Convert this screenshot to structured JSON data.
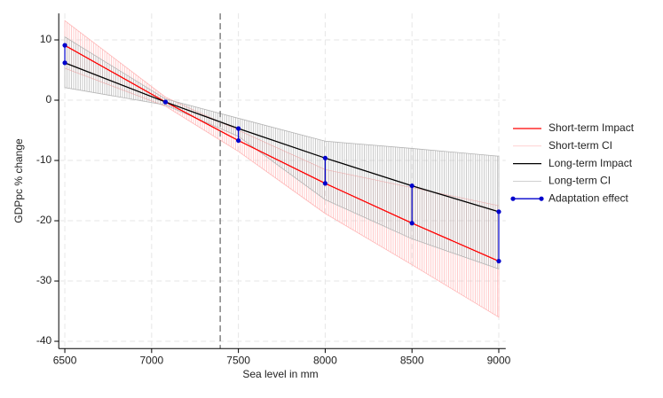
{
  "chart_data": {
    "type": "line",
    "xlabel": "Sea level in mm",
    "ylabel": "GDPpc % change",
    "xlim": [
      6465,
      9040
    ],
    "ylim": [
      -41.2,
      14.4
    ],
    "xticks": [
      6500,
      7000,
      7500,
      8000,
      8500,
      9000
    ],
    "yticks": [
      10,
      0,
      -10,
      -20,
      -30,
      -40
    ],
    "grid": true,
    "vline": 7395,
    "legend": "right",
    "series": [
      {
        "name": "Short-term Impact",
        "color": "#ff0000",
        "kind": "line",
        "x": [
          6500,
          7080,
          7500,
          8000,
          8500,
          9000
        ],
        "values": [
          9.1,
          -0.3,
          -6.7,
          -13.8,
          -20.4,
          -26.7
        ]
      },
      {
        "name": "Short-term CI",
        "color": "#ffb6b6",
        "kind": "band",
        "x": [
          6500,
          7080,
          7500,
          8000,
          8500,
          9000
        ],
        "lower": [
          5.3,
          -1.0,
          -8.5,
          -18.8,
          -27.3,
          -36.0
        ],
        "upper": [
          13.2,
          0.5,
          -5.0,
          -11.5,
          -14.5,
          -17.5
        ]
      },
      {
        "name": "Long-term Impact",
        "color": "#000000",
        "kind": "line",
        "x": [
          6500,
          7080,
          7500,
          8000,
          8500,
          9000
        ],
        "values": [
          6.2,
          -0.3,
          -4.7,
          -9.6,
          -14.2,
          -18.5
        ]
      },
      {
        "name": "Long-term CI",
        "color": "#b4b4b4",
        "kind": "band",
        "x": [
          6500,
          7080,
          7500,
          8000,
          8500,
          9000
        ],
        "lower": [
          2.1,
          -0.8,
          -6.0,
          -16.5,
          -23.0,
          -28.0
        ],
        "upper": [
          10.5,
          0.2,
          -3.0,
          -6.8,
          -8.0,
          -9.3
        ]
      },
      {
        "name": "Adaptation effect",
        "color": "#0000cc",
        "kind": "segments",
        "x": [
          6500,
          7080,
          7500,
          8000,
          8500,
          9000
        ],
        "low": [
          6.2,
          -0.3,
          -6.7,
          -13.8,
          -20.4,
          -26.7
        ],
        "high": [
          9.1,
          -0.3,
          -4.7,
          -9.6,
          -14.2,
          -18.5
        ]
      }
    ]
  }
}
